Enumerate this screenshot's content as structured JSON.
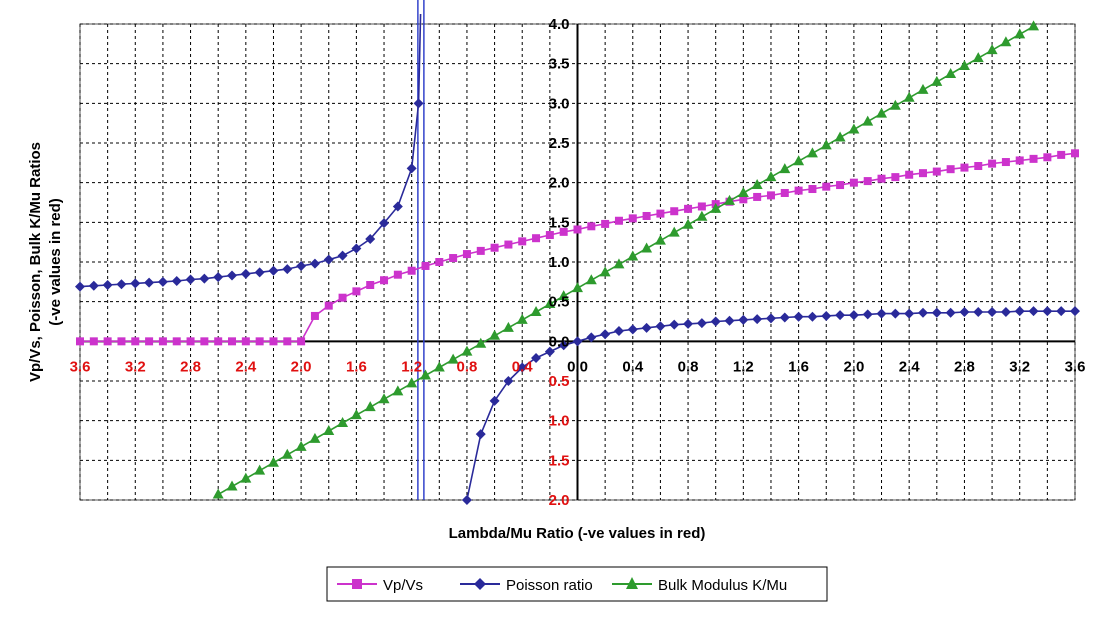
{
  "chart_data": {
    "type": "line",
    "xlabel": "Lambda/Mu Ratio (-ve values in red)",
    "ylabel_lines": [
      "Vp/Vs, Poisson, Bulk K/Mu Ratios",
      "(-ve values in red)"
    ],
    "xlim": [
      -3.6,
      3.6
    ],
    "ylim": [
      -2.0,
      4.0
    ],
    "x_ticks": [
      {
        "value": -3.6,
        "label": "3.6",
        "negative": true
      },
      {
        "value": -3.2,
        "label": "3.2",
        "negative": true
      },
      {
        "value": -2.8,
        "label": "2.8",
        "negative": true
      },
      {
        "value": -2.4,
        "label": "2.4",
        "negative": true
      },
      {
        "value": -2.0,
        "label": "2.0",
        "negative": true
      },
      {
        "value": -1.6,
        "label": "1.6",
        "negative": true
      },
      {
        "value": -1.2,
        "label": "1.2",
        "negative": true
      },
      {
        "value": -0.8,
        "label": "0.8",
        "negative": true
      },
      {
        "value": -0.4,
        "label": "0.4",
        "negative": true
      },
      {
        "value": 0.0,
        "label": "0.0",
        "negative": false
      },
      {
        "value": 0.4,
        "label": "0.4",
        "negative": false
      },
      {
        "value": 0.8,
        "label": "0.8",
        "negative": false
      },
      {
        "value": 1.2,
        "label": "1.2",
        "negative": false
      },
      {
        "value": 1.6,
        "label": "1.6",
        "negative": false
      },
      {
        "value": 2.0,
        "label": "2.0",
        "negative": false
      },
      {
        "value": 2.4,
        "label": "2.4",
        "negative": false
      },
      {
        "value": 2.8,
        "label": "2.8",
        "negative": false
      },
      {
        "value": 3.2,
        "label": "3.2",
        "negative": false
      },
      {
        "value": 3.6,
        "label": "3.6",
        "negative": false
      }
    ],
    "y_ticks": [
      {
        "value": 4.0,
        "label": "4.0",
        "negative": false
      },
      {
        "value": 3.5,
        "label": "3.5",
        "negative": false
      },
      {
        "value": 3.0,
        "label": "3.0",
        "negative": false
      },
      {
        "value": 2.5,
        "label": "2.5",
        "negative": false
      },
      {
        "value": 2.0,
        "label": "2.0",
        "negative": false
      },
      {
        "value": 1.5,
        "label": "1.5",
        "negative": false
      },
      {
        "value": 1.0,
        "label": "1.0",
        "negative": false
      },
      {
        "value": 0.5,
        "label": "0.5",
        "negative": false
      },
      {
        "value": 0.0,
        "label": "0.0",
        "negative": false
      },
      {
        "value": -0.5,
        "label": "0.5",
        "negative": true
      },
      {
        "value": -1.0,
        "label": "1.0",
        "negative": true
      },
      {
        "value": -1.5,
        "label": "1.5",
        "negative": true
      },
      {
        "value": -2.0,
        "label": "2.0",
        "negative": true
      }
    ],
    "grid": true,
    "grid_style": "dashed",
    "asymptote_x": -1.1333,
    "legend_position": "bottom",
    "series": [
      {
        "name": "Vp/Vs",
        "color": "#cc33cc",
        "marker": "square",
        "x": [
          -3.6,
          -3.5,
          -3.4,
          -3.3,
          -3.2,
          -3.1,
          -3.0,
          -2.9,
          -2.8,
          -2.7,
          -2.6,
          -2.5,
          -2.4,
          -2.3,
          -2.2,
          -2.1,
          -2.0,
          -1.9,
          -1.8,
          -1.7,
          -1.6,
          -1.5,
          -1.4,
          -1.3,
          -1.2,
          -1.1,
          -1.0,
          -0.9,
          -0.8,
          -0.7,
          -0.6,
          -0.5,
          -0.4,
          -0.3,
          -0.2,
          -0.1,
          0.0,
          0.1,
          0.2,
          0.3,
          0.4,
          0.5,
          0.6,
          0.7,
          0.8,
          0.9,
          1.0,
          1.1,
          1.2,
          1.3,
          1.4,
          1.5,
          1.6,
          1.7,
          1.8,
          1.9,
          2.0,
          2.1,
          2.2,
          2.3,
          2.4,
          2.5,
          2.6,
          2.7,
          2.8,
          2.9,
          3.0,
          3.1,
          3.2,
          3.3,
          3.4,
          3.5,
          3.6
        ],
        "y": [
          0,
          0,
          0,
          0,
          0,
          0,
          0,
          0,
          0,
          0,
          0,
          0,
          0,
          0,
          0,
          0,
          0,
          0.32,
          0.45,
          0.55,
          0.63,
          0.71,
          0.77,
          0.84,
          0.89,
          0.95,
          1.0,
          1.05,
          1.1,
          1.14,
          1.18,
          1.22,
          1.26,
          1.3,
          1.34,
          1.38,
          1.41,
          1.45,
          1.48,
          1.52,
          1.55,
          1.58,
          1.61,
          1.64,
          1.67,
          1.7,
          1.73,
          1.76,
          1.79,
          1.82,
          1.84,
          1.87,
          1.9,
          1.92,
          1.95,
          1.97,
          2.0,
          2.02,
          2.05,
          2.07,
          2.1,
          2.12,
          2.14,
          2.17,
          2.19,
          2.21,
          2.24,
          2.26,
          2.28,
          2.3,
          2.32,
          2.35,
          2.37
        ]
      },
      {
        "name": "Poisson ratio",
        "color": "#2a2a9a",
        "marker": "diamond",
        "x": [
          -3.6,
          -3.5,
          -3.4,
          -3.3,
          -3.2,
          -3.1,
          -3.0,
          -2.9,
          -2.8,
          -2.7,
          -2.6,
          -2.5,
          -2.4,
          -2.3,
          -2.2,
          -2.1,
          -2.0,
          -1.9,
          -1.8,
          -1.7,
          -1.6,
          -1.5,
          -1.4,
          -1.3,
          -1.2,
          null,
          -0.8,
          -0.7,
          -0.6,
          -0.5,
          -0.4,
          -0.3,
          -0.2,
          -0.1,
          0.0,
          0.1,
          0.2,
          0.3,
          0.4,
          0.5,
          0.6,
          0.7,
          0.8,
          0.9,
          1.0,
          1.1,
          1.2,
          1.3,
          1.4,
          1.5,
          1.6,
          1.7,
          1.8,
          1.9,
          2.0,
          2.1,
          2.2,
          2.3,
          2.4,
          2.5,
          2.6,
          2.7,
          2.8,
          2.9,
          3.0,
          3.1,
          3.2,
          3.3,
          3.4,
          3.5,
          3.6
        ],
        "y": [
          0.69,
          0.7,
          0.71,
          0.72,
          0.73,
          0.74,
          0.75,
          0.76,
          0.78,
          0.79,
          0.81,
          0.83,
          0.85,
          0.87,
          0.89,
          0.91,
          0.95,
          0.98,
          1.03,
          1.08,
          1.17,
          1.29,
          1.49,
          1.7,
          2.18,
          null,
          -2.0,
          -1.17,
          -0.75,
          -0.5,
          -0.33,
          -0.21,
          -0.13,
          -0.05,
          0.0,
          0.05,
          0.09,
          0.13,
          0.15,
          0.17,
          0.19,
          0.21,
          0.22,
          0.23,
          0.25,
          0.26,
          0.27,
          0.28,
          0.29,
          0.3,
          0.31,
          0.31,
          0.32,
          0.33,
          0.33,
          0.34,
          0.35,
          0.35,
          0.35,
          0.36,
          0.36,
          0.36,
          0.37,
          0.37,
          0.37,
          0.37,
          0.38,
          0.38,
          0.38,
          0.38,
          0.38
        ]
      },
      {
        "name": "Bulk Modulus K/Mu",
        "color": "#2e9b2e",
        "marker": "triangle",
        "x": [
          -2.6,
          -2.5,
          -2.4,
          -2.3,
          -2.2,
          -2.1,
          -2.0,
          -1.9,
          -1.8,
          -1.7,
          -1.6,
          -1.5,
          -1.4,
          -1.3,
          -1.2,
          -1.1,
          -1.0,
          -0.9,
          -0.8,
          -0.7,
          -0.6,
          -0.5,
          -0.4,
          -0.3,
          -0.2,
          -0.1,
          0.0,
          0.1,
          0.2,
          0.3,
          0.4,
          0.5,
          0.6,
          0.7,
          0.8,
          0.9,
          1.0,
          1.1,
          1.2,
          1.3,
          1.4,
          1.5,
          1.6,
          1.7,
          1.8,
          1.9,
          2.0,
          2.1,
          2.2,
          2.3,
          2.4,
          2.5,
          2.6,
          2.7,
          2.8,
          2.9,
          3.0,
          3.1,
          3.2,
          3.3
        ],
        "y": [
          -1.93,
          -1.83,
          -1.73,
          -1.63,
          -1.53,
          -1.43,
          -1.33,
          -1.23,
          -1.13,
          -1.03,
          -0.93,
          -0.83,
          -0.73,
          -0.63,
          -0.53,
          -0.43,
          -0.33,
          -0.23,
          -0.13,
          -0.03,
          0.07,
          0.17,
          0.27,
          0.37,
          0.47,
          0.57,
          0.67,
          0.77,
          0.87,
          0.97,
          1.07,
          1.17,
          1.27,
          1.37,
          1.47,
          1.57,
          1.67,
          1.77,
          1.87,
          1.97,
          2.07,
          2.17,
          2.27,
          2.37,
          2.47,
          2.57,
          2.67,
          2.77,
          2.87,
          2.97,
          3.07,
          3.17,
          3.27,
          3.37,
          3.47,
          3.57,
          3.67,
          3.77,
          3.87,
          3.97
        ]
      }
    ]
  },
  "colors": {
    "negative_label": "#e01010",
    "positive_label": "#000000",
    "asymptote": "#3344cc",
    "grid": "#000000"
  }
}
